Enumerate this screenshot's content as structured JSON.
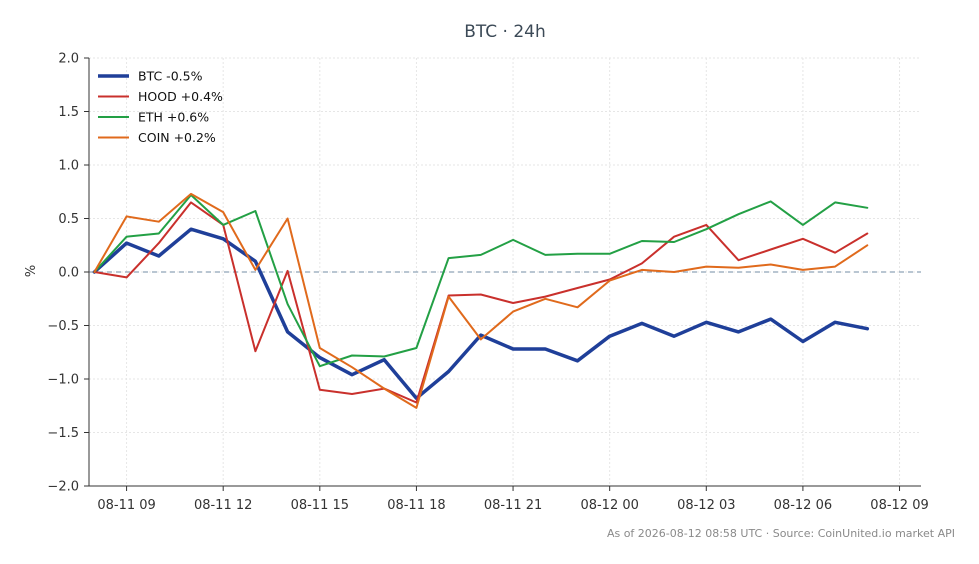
{
  "chart_data": {
    "type": "line",
    "title": "BTC · 24h",
    "ylabel": "%",
    "xlabel": "",
    "ylim": [
      -2.0,
      2.0
    ],
    "yticks": [
      -2.0,
      -1.5,
      -1.0,
      -0.5,
      0.0,
      0.5,
      1.0,
      1.5,
      2.0
    ],
    "ytick_labels": [
      "−2.0",
      "−1.5",
      "−1.0",
      "−0.5",
      "0.0",
      "0.5",
      "1.0",
      "1.5",
      "2.0"
    ],
    "xlim": [
      "2026-08-11 07:50",
      "2026-08-12 09:40"
    ],
    "xticks": [
      "2026-08-11 09:00",
      "2026-08-11 12:00",
      "2026-08-11 15:00",
      "2026-08-11 18:00",
      "2026-08-11 21:00",
      "2026-08-12 00:00",
      "2026-08-12 03:00",
      "2026-08-12 06:00",
      "2026-08-12 09:00"
    ],
    "xtick_labels": [
      "08-11 09",
      "08-11 12",
      "08-11 15",
      "08-11 18",
      "08-11 21",
      "08-12 00",
      "08-12 03",
      "08-12 06",
      "08-12 09"
    ],
    "x": [
      "2026-08-11 08:00",
      "2026-08-11 09:00",
      "2026-08-11 10:00",
      "2026-08-11 11:00",
      "2026-08-11 12:00",
      "2026-08-11 13:00",
      "2026-08-11 14:00",
      "2026-08-11 15:00",
      "2026-08-11 16:00",
      "2026-08-11 17:00",
      "2026-08-11 18:00",
      "2026-08-11 19:00",
      "2026-08-11 20:00",
      "2026-08-11 21:00",
      "2026-08-11 22:00",
      "2026-08-11 23:00",
      "2026-08-12 00:00",
      "2026-08-12 01:00",
      "2026-08-12 02:00",
      "2026-08-12 03:00",
      "2026-08-12 04:00",
      "2026-08-12 05:00",
      "2026-08-12 06:00",
      "2026-08-12 07:00",
      "2026-08-12 08:00"
    ],
    "zero_line": 0.0,
    "grid": true,
    "legend_position": "top-left",
    "series": [
      {
        "name": "BTC -0.5%",
        "color": "#1f3f99",
        "width": 3.5,
        "values": [
          0.0,
          0.27,
          0.15,
          0.4,
          0.31,
          0.1,
          -0.56,
          -0.8,
          -0.96,
          -0.82,
          -1.18,
          -0.93,
          -0.59,
          -0.72,
          -0.72,
          -0.83,
          -0.6,
          -0.48,
          -0.6,
          -0.47,
          -0.56,
          -0.44,
          -0.65,
          -0.47,
          -0.53
        ]
      },
      {
        "name": "HOOD +0.4%",
        "color": "#c9302c",
        "width": 2,
        "values": [
          0.0,
          -0.05,
          0.27,
          0.65,
          0.44,
          -0.74,
          0.01,
          -1.1,
          -1.14,
          -1.09,
          -1.22,
          -0.22,
          -0.21,
          -0.29,
          -0.23,
          -0.15,
          -0.07,
          0.08,
          0.33,
          0.44,
          0.11,
          0.21,
          0.31,
          0.18,
          0.36
        ]
      },
      {
        "name": "ETH +0.6%",
        "color": "#23a045",
        "width": 2,
        "values": [
          0.0,
          0.33,
          0.36,
          0.72,
          0.44,
          0.57,
          -0.3,
          -0.88,
          -0.78,
          -0.79,
          -0.71,
          0.13,
          0.16,
          0.3,
          0.16,
          0.17,
          0.17,
          0.29,
          0.28,
          0.4,
          0.54,
          0.66,
          0.44,
          0.65,
          0.6
        ]
      },
      {
        "name": "COIN +0.2%",
        "color": "#e06a1c",
        "width": 2,
        "values": [
          0.0,
          0.52,
          0.47,
          0.73,
          0.56,
          0.02,
          0.5,
          -0.71,
          -0.89,
          -1.09,
          -1.27,
          -0.23,
          -0.63,
          -0.37,
          -0.25,
          -0.33,
          -0.08,
          0.02,
          0.0,
          0.05,
          0.04,
          0.07,
          0.02,
          0.05,
          0.25
        ]
      }
    ]
  },
  "footer": "As of 2026-08-12 08:58 UTC · Source: CoinUnited.io market API"
}
